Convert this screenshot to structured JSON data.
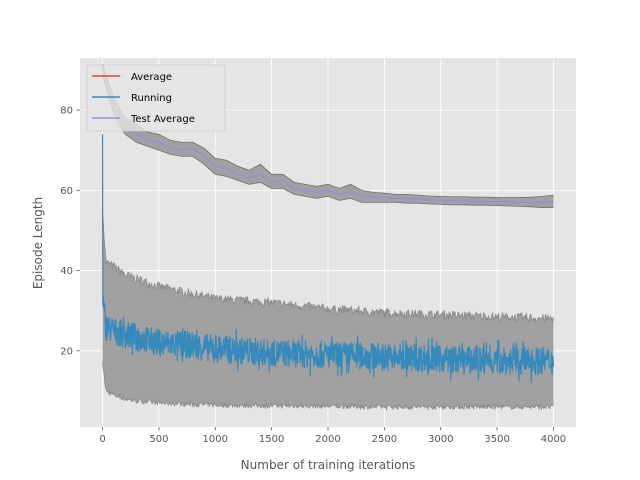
{
  "chart_data": {
    "type": "line",
    "title": "",
    "xlabel": "Number of training iterations",
    "ylabel": "Episode Length",
    "xlim": [
      -200,
      4200
    ],
    "ylim": [
      1,
      93
    ],
    "x_ticks": [
      0,
      500,
      1000,
      1500,
      2000,
      2500,
      3000,
      3500,
      4000
    ],
    "x_tick_labels": [
      "0",
      "500",
      "1000",
      "1500",
      "2000",
      "2500",
      "3000",
      "3500",
      "4000"
    ],
    "y_ticks": [
      20,
      40,
      60,
      80
    ],
    "y_tick_labels": [
      "20",
      "40",
      "60",
      "80"
    ],
    "grid": true,
    "style": "ggplot",
    "legend_position": "top-left",
    "colors": {
      "average": "#E24A33",
      "running": "#348ABD",
      "test_average": "#988ED5",
      "band_fill": "#a0a0a0",
      "band_edge": "#888888",
      "plot_bg": "#E5E5E5",
      "grid": "#ffffff"
    },
    "legend": [
      {
        "label": "Average",
        "key": "average"
      },
      {
        "label": "Running",
        "key": "running"
      },
      {
        "label": "Test Average",
        "key": "test_average"
      }
    ],
    "series": [
      {
        "name": "Test Average",
        "key": "test_average",
        "x": [
          0,
          100,
          200,
          300,
          400,
          500,
          600,
          700,
          800,
          900,
          1000,
          1100,
          1200,
          1300,
          1400,
          1500,
          1600,
          1700,
          1800,
          1900,
          2000,
          2100,
          2200,
          2300,
          2400,
          2500,
          2600,
          2700,
          2800,
          2900,
          3000,
          3100,
          3200,
          3300,
          3400,
          3500,
          3600,
          3700,
          3800,
          3900,
          4000
        ],
        "y": [
          90,
          81,
          76,
          74,
          72.5,
          72,
          70.5,
          70,
          70.5,
          68.5,
          66,
          65.5,
          64,
          63,
          64,
          62,
          62.5,
          60.5,
          60,
          59.5,
          60,
          59,
          59.5,
          58.5,
          58.3,
          58.2,
          58,
          58,
          57.8,
          57.6,
          57.5,
          57.4,
          57.4,
          57.3,
          57.3,
          57.2,
          57.2,
          57.1,
          57.1,
          57,
          57.2
        ],
        "band_upper": [
          91.5,
          83,
          78,
          76.5,
          74.5,
          74,
          72.5,
          72,
          72,
          70.5,
          68,
          67.5,
          66,
          65,
          66.5,
          64,
          64,
          62,
          61.5,
          61,
          61.5,
          60.5,
          61.5,
          60,
          59.5,
          59.3,
          59,
          59,
          58.8,
          58.6,
          58.5,
          58.4,
          58.4,
          58.3,
          58.3,
          58.2,
          58.2,
          58.2,
          58.3,
          58.5,
          58.8
        ],
        "band_lower": [
          88.5,
          79,
          74,
          72,
          71,
          70,
          69,
          68.5,
          68.5,
          66.5,
          64,
          63.5,
          62.5,
          61.5,
          62,
          60.5,
          60.5,
          59,
          58.5,
          58,
          58.5,
          57.5,
          58,
          57,
          57,
          57,
          57,
          56.8,
          56.8,
          56.6,
          56.5,
          56.4,
          56.4,
          56.3,
          56.3,
          56.2,
          56.1,
          56,
          55.9,
          55.7,
          55.7
        ]
      },
      {
        "name": "Running",
        "key": "running",
        "summary": {
          "x_start": 0,
          "x_end": 4000,
          "initial_spike": 74,
          "mean_x": [
            0,
            30,
            100,
            200,
            300,
            500,
            750,
            1000,
            1500,
            2000,
            2500,
            3000,
            3500,
            4000
          ],
          "mean_y": [
            33,
            26,
            25,
            24,
            23.5,
            22,
            21.5,
            20.5,
            19.5,
            19,
            18.5,
            18,
            17.5,
            17.5
          ],
          "noise_range": 3.5
        }
      }
    ],
    "episode_band": {
      "x": [
        0,
        30,
        100,
        200,
        300,
        500,
        750,
        1000,
        1500,
        2000,
        2500,
        3000,
        3500,
        4000
      ],
      "upper": [
        55,
        42,
        41,
        39,
        38,
        36,
        34.5,
        33,
        32,
        30.5,
        29.5,
        29,
        28.5,
        28
      ],
      "lower": [
        17,
        10,
        9,
        8,
        7.5,
        7,
        6.7,
        6.5,
        6.3,
        6.2,
        6,
        6,
        6,
        6
      ]
    }
  }
}
